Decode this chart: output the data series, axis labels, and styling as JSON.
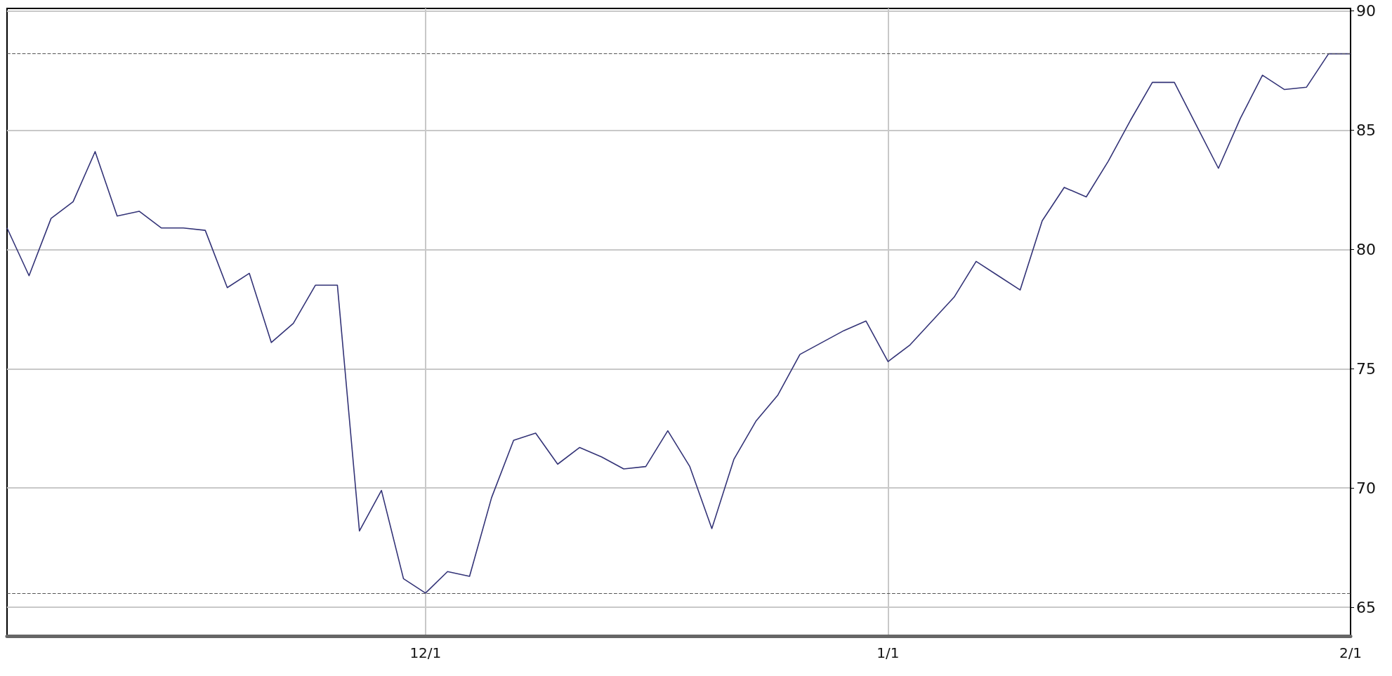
{
  "chart_data": {
    "type": "line",
    "categories": [
      null,
      null,
      null,
      null,
      null,
      null,
      null,
      null,
      null,
      null,
      null,
      null,
      null,
      null,
      null,
      null,
      null,
      null,
      null,
      "12/1",
      null,
      null,
      null,
      null,
      null,
      null,
      null,
      null,
      null,
      null,
      null,
      null,
      null,
      null,
      null,
      null,
      null,
      null,
      null,
      null,
      "1/1",
      null,
      null,
      null,
      null,
      null,
      null,
      null,
      null,
      null,
      null,
      null,
      null,
      null,
      null,
      null,
      null,
      null,
      null,
      null,
      null,
      "2/1"
    ],
    "series": [
      {
        "color": "#333377",
        "values": [
          80.9,
          78.9,
          81.3,
          82.0,
          84.1,
          81.4,
          81.6,
          80.9,
          80.9,
          80.8,
          78.4,
          79.0,
          76.1,
          76.9,
          78.5,
          78.5,
          68.2,
          69.9,
          66.2,
          65.6,
          66.5,
          66.3,
          69.6,
          72.0,
          72.3,
          71.0,
          71.7,
          71.3,
          70.8,
          70.9,
          72.4,
          70.9,
          68.3,
          71.2,
          72.8,
          73.9,
          75.6,
          76.1,
          76.6,
          77.0,
          75.3,
          76.0,
          77.0,
          78.0,
          79.5,
          78.9,
          78.3,
          81.2,
          82.6,
          82.2,
          83.7,
          85.4,
          87.0,
          87.0,
          85.2,
          83.4,
          85.5,
          87.3,
          86.7,
          86.8,
          88.2,
          88.2
        ]
      }
    ],
    "ylim": [
      63.8,
      90.1
    ],
    "yticks": [
      65,
      70,
      75,
      80,
      85,
      90
    ],
    "grid": true,
    "marker": "none",
    "ref_lines": [
      {
        "axis": "y",
        "value": 88.2,
        "line_style": "dashed",
        "color": "#555555"
      },
      {
        "axis": "y",
        "value": 65.6,
        "line_style": "dashed",
        "color": "#555555"
      }
    ]
  }
}
